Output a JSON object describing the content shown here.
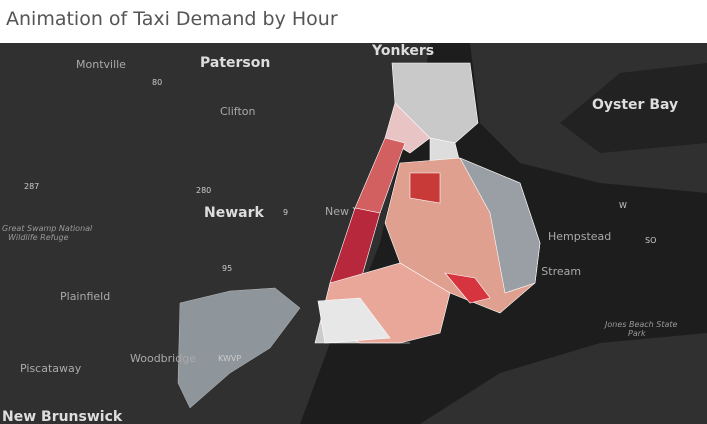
{
  "title": "Animation of Taxi Demand by Hour",
  "map": {
    "labels": [
      "Yonkers",
      "Paterson",
      "Montville",
      "Clifton",
      "Oyster Bay",
      "Newark",
      "New York",
      "Great Swamp National",
      "Wildlife Refuge",
      "Hempstead",
      "Valley Stream",
      "Plainfield",
      "Woodbridge",
      "Piscataway",
      "New Brunswick",
      "Jones Beach State",
      "Park"
    ],
    "shields": [
      "80",
      "287",
      "280",
      "9",
      "95",
      "W",
      "SO",
      "KWVP"
    ]
  }
}
